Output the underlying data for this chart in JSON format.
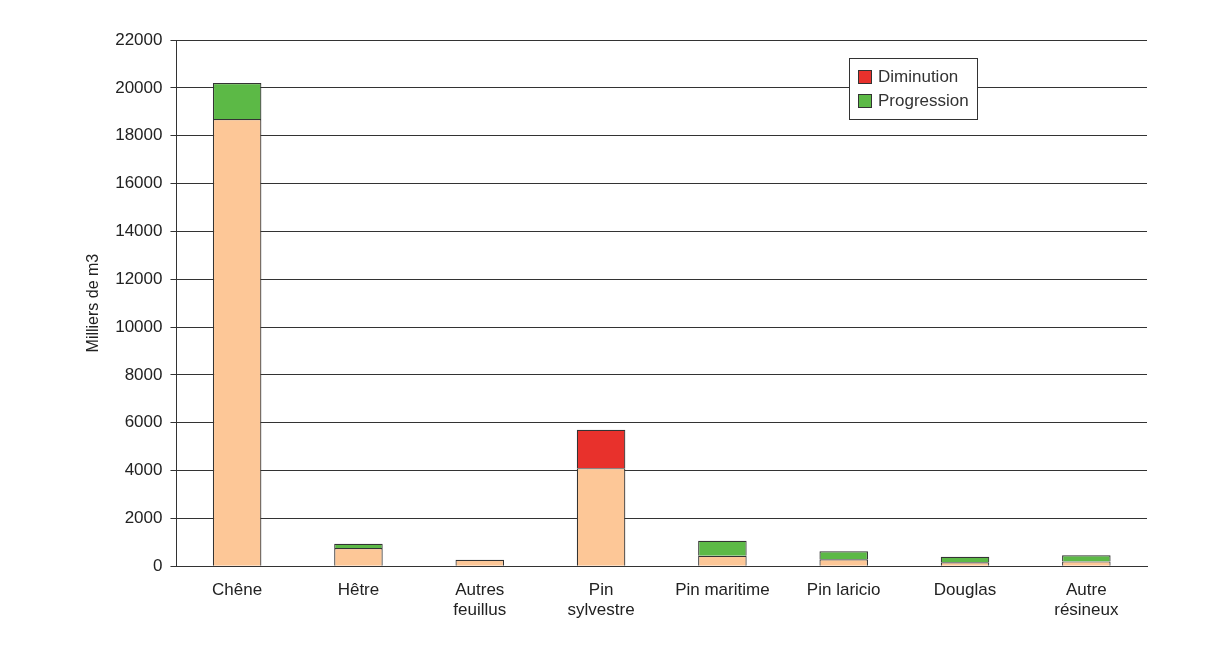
{
  "chart_data": {
    "type": "bar",
    "stacked": true,
    "ylabel": "Milliers de m3",
    "categories": [
      "Chêne",
      "Hêtre",
      "Autres\nfeuillus",
      "Pin\nsylvestre",
      "Pin maritime",
      "Pin laricio",
      "Douglas",
      "Autre\nrésineux"
    ],
    "series": [
      {
        "color": "#fdc797",
        "values": [
          18700,
          760,
          270,
          4100,
          440,
          290,
          160,
          200
        ]
      },
      {
        "name": "Diminution",
        "color": "#e8312c",
        "values": [
          0,
          0,
          0,
          1600,
          0,
          0,
          0,
          0
        ]
      },
      {
        "name": "Progression",
        "color": "#5cb946",
        "values": [
          1500,
          180,
          0,
          0,
          620,
          330,
          230,
          260
        ]
      }
    ],
    "ylim": [
      0,
      22000
    ],
    "yticks": [
      0,
      2000,
      4000,
      6000,
      8000,
      10000,
      12000,
      14000,
      16000,
      18000,
      20000,
      22000
    ],
    "grid": "y",
    "legend": "top right"
  }
}
